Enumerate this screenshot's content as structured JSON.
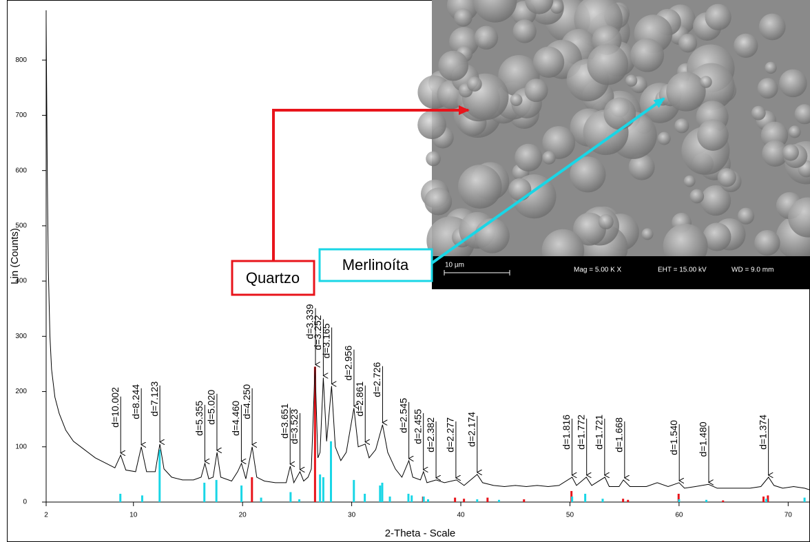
{
  "chart_data": {
    "type": "line",
    "x_label": "2-Theta - Scale",
    "y_label": "Lin (Counts)",
    "color": "#000000",
    "xlim": [
      2,
      72
    ],
    "ylim": [
      0,
      890
    ],
    "xticks": [
      2,
      10,
      20,
      30,
      40,
      50,
      60,
      70
    ],
    "yticks": [
      0,
      100,
      200,
      300,
      400,
      500,
      600,
      700,
      800
    ],
    "x": [
      2.0,
      2.1,
      2.2,
      2.35,
      2.5,
      2.8,
      3.2,
      3.8,
      4.5,
      5.5,
      6.5,
      7.5,
      8.3,
      8.83,
      9.3,
      10.2,
      10.72,
      11.2,
      12.0,
      12.42,
      12.8,
      13.5,
      14.5,
      15.5,
      16.2,
      16.55,
      16.9,
      17.3,
      17.66,
      18.0,
      19.0,
      19.55,
      19.9,
      20.3,
      20.88,
      21.3,
      22.0,
      23.0,
      24.0,
      24.37,
      24.7,
      25.26,
      25.6,
      26.0,
      26.3,
      26.64,
      26.9,
      27.1,
      27.4,
      27.7,
      28.16,
      28.5,
      29.0,
      29.5,
      30.2,
      30.6,
      31.24,
      31.6,
      32.2,
      32.83,
      33.3,
      34.0,
      34.6,
      35.24,
      35.6,
      36.3,
      36.58,
      36.9,
      37.74,
      38.5,
      39.6,
      40.3,
      41.5,
      42.0,
      43.0,
      44.0,
      45.0,
      46.0,
      47.0,
      48.0,
      49.0,
      50.2,
      50.6,
      51.5,
      52.0,
      53.2,
      53.6,
      54.5,
      54.9,
      55.5,
      57.0,
      58.0,
      59.0,
      60.0,
      60.5,
      61.5,
      62.7,
      63.5,
      65.0,
      66.5,
      67.5,
      68.2,
      68.7,
      69.5,
      70.5,
      71.5,
      72.0
    ],
    "values": [
      870,
      600,
      420,
      300,
      240,
      190,
      160,
      130,
      110,
      95,
      80,
      70,
      62,
      85,
      58,
      55,
      100,
      55,
      55,
      105,
      60,
      45,
      40,
      40,
      45,
      70,
      42,
      45,
      90,
      45,
      38,
      55,
      70,
      42,
      100,
      45,
      38,
      35,
      35,
      65,
      35,
      55,
      38,
      45,
      60,
      245,
      80,
      90,
      225,
      110,
      210,
      100,
      75,
      90,
      170,
      100,
      105,
      80,
      95,
      140,
      90,
      60,
      45,
      75,
      45,
      40,
      55,
      35,
      40,
      35,
      40,
      30,
      50,
      35,
      30,
      28,
      30,
      28,
      30,
      28,
      30,
      45,
      30,
      45,
      30,
      45,
      28,
      28,
      40,
      28,
      28,
      35,
      28,
      35,
      25,
      28,
      32,
      25,
      25,
      25,
      28,
      45,
      30,
      25,
      28,
      25,
      22
    ],
    "reference_patterns": [
      {
        "name": "Quartzo",
        "color": "#e8141b",
        "x": [
          20.86,
          26.64,
          36.54,
          39.47,
          40.29,
          42.45,
          45.79,
          50.14,
          54.87,
          55.32,
          59.96,
          64.03,
          67.74,
          68.14
        ],
        "values": [
          45,
          245,
          10,
          8,
          6,
          8,
          5,
          20,
          6,
          4,
          15,
          3,
          10,
          12
        ]
      },
      {
        "name": "Merlinoíta",
        "color": "#19d6e6",
        "x": [
          8.8,
          10.8,
          12.4,
          16.5,
          17.6,
          19.9,
          21.7,
          24.4,
          25.2,
          27.1,
          27.4,
          28.1,
          30.2,
          31.2,
          32.6,
          32.8,
          33.5,
          35.2,
          35.5,
          36.6,
          37.0,
          41.5,
          43.5,
          50.2,
          51.4,
          53.0,
          60.0,
          62.5,
          68.0,
          71.5
        ],
        "values": [
          15,
          12,
          95,
          35,
          40,
          30,
          8,
          18,
          5,
          50,
          45,
          110,
          40,
          15,
          30,
          35,
          10,
          15,
          12,
          10,
          5,
          5,
          4,
          10,
          15,
          6,
          5,
          4,
          6,
          8
        ]
      }
    ],
    "peaks": [
      {
        "label": "d=10.002",
        "x": 8.83,
        "y": 85
      },
      {
        "label": "d=8.244",
        "x": 10.72,
        "y": 100
      },
      {
        "label": "d=7.123",
        "x": 12.42,
        "y": 105
      },
      {
        "label": "d=5.355",
        "x": 16.54,
        "y": 70
      },
      {
        "label": "d=5.020",
        "x": 17.65,
        "y": 90
      },
      {
        "label": "d=4.460",
        "x": 19.89,
        "y": 70
      },
      {
        "label": "d=4.250",
        "x": 20.88,
        "y": 100
      },
      {
        "label": "d=3.651",
        "x": 24.36,
        "y": 65
      },
      {
        "label": "d=3.523",
        "x": 25.26,
        "y": 55
      },
      {
        "label": "d=3.339",
        "x": 26.68,
        "y": 245
      },
      {
        "label": "d=3.252",
        "x": 27.4,
        "y": 225
      },
      {
        "label": "d=3.165",
        "x": 28.17,
        "y": 210
      },
      {
        "label": "d=2.956",
        "x": 30.21,
        "y": 170
      },
      {
        "label": "d=2.861",
        "x": 31.24,
        "y": 105
      },
      {
        "label": "d=2.726",
        "x": 32.83,
        "y": 140
      },
      {
        "label": "d=2.545",
        "x": 35.24,
        "y": 75
      },
      {
        "label": "d=2.455",
        "x": 36.57,
        "y": 55
      },
      {
        "label": "d=2.382",
        "x": 37.73,
        "y": 40
      },
      {
        "label": "d=2.277",
        "x": 39.55,
        "y": 40
      },
      {
        "label": "d=2.174",
        "x": 41.5,
        "y": 50
      },
      {
        "label": "d=1.816",
        "x": 50.19,
        "y": 45
      },
      {
        "label": "d=1.772",
        "x": 51.53,
        "y": 45
      },
      {
        "label": "d=1.721",
        "x": 53.18,
        "y": 45
      },
      {
        "label": "d=1.668",
        "x": 55.01,
        "y": 40
      },
      {
        "label": "d=1.540",
        "x": 60.02,
        "y": 35
      },
      {
        "label": "d=1.480",
        "x": 62.72,
        "y": 32
      },
      {
        "label": "d=1.374",
        "x": 68.19,
        "y": 45
      }
    ]
  },
  "inset": {
    "scale_bar": "10 µm",
    "mag": "Mag =   5.00 K X",
    "eht": "EHT = 15.00 kV",
    "wd": "WD =  9.0 mm"
  }
}
